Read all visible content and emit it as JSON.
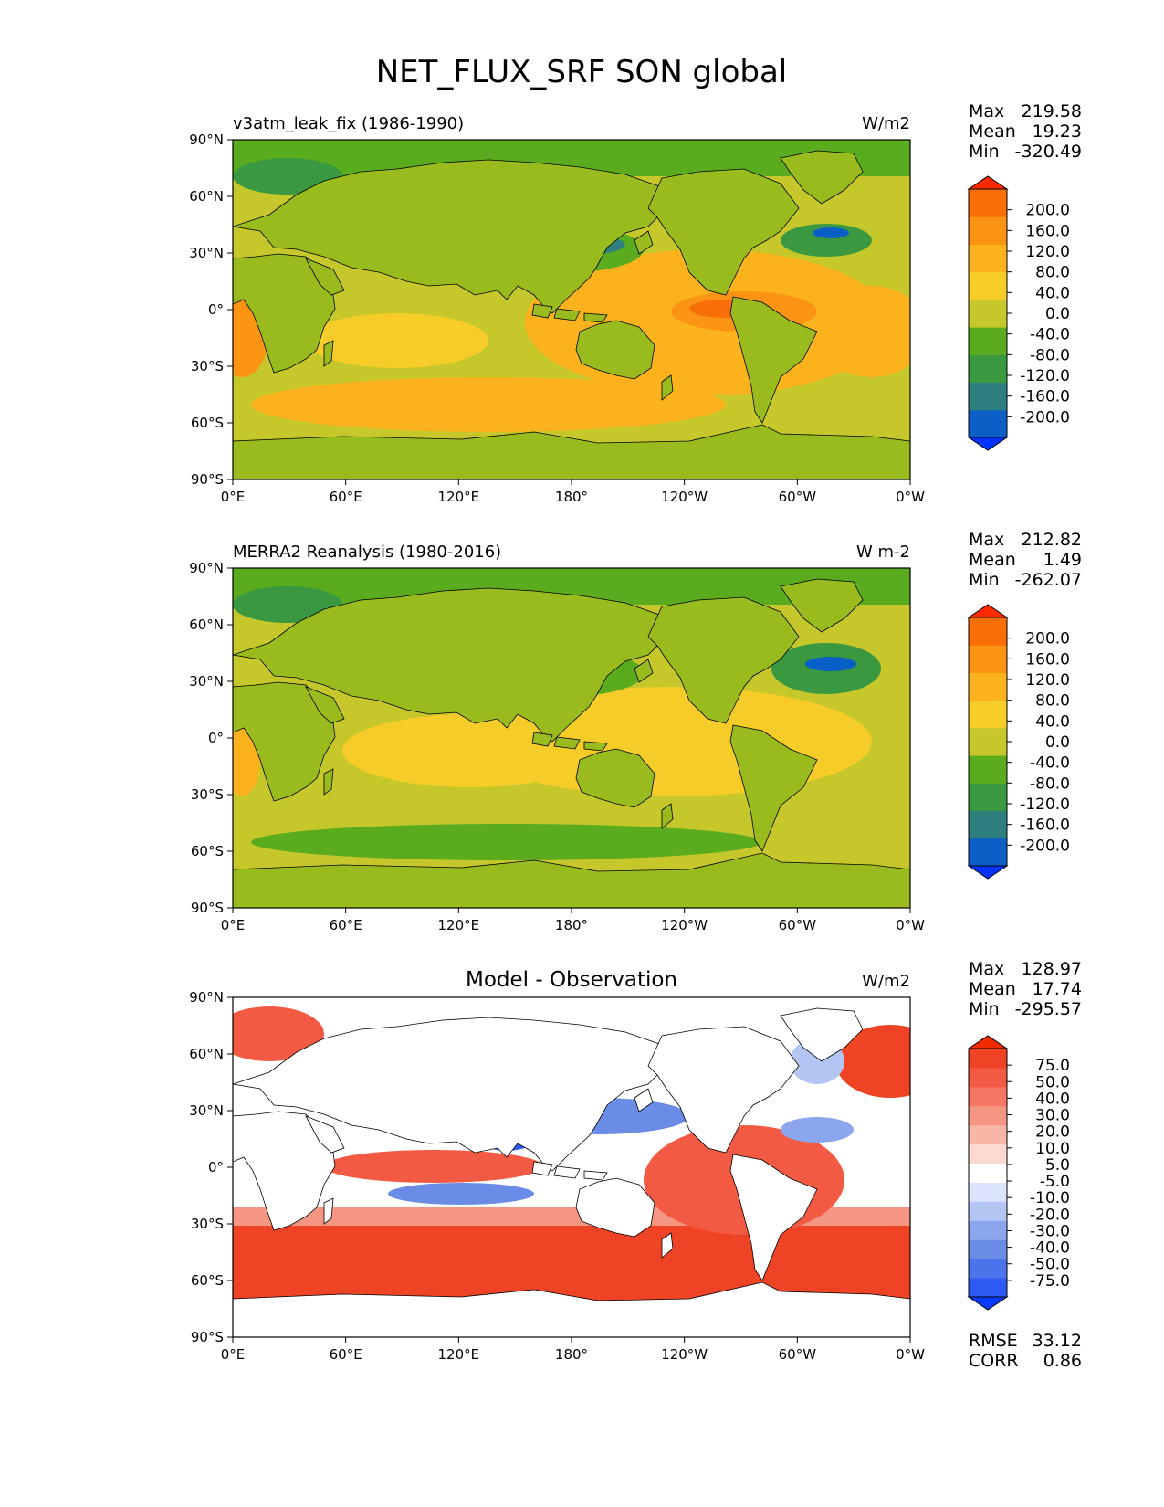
{
  "title": "NET_FLUX_SRF SON global",
  "lat_ticks": [
    "90°N",
    "60°N",
    "30°N",
    "0°",
    "30°S",
    "60°S",
    "90°S"
  ],
  "lon_ticks": [
    "0°E",
    "60°E",
    "120°E",
    "180°",
    "120°W",
    "60°W",
    "0°W"
  ],
  "colors": {
    "main_scale": [
      "#0033ff",
      "#0a5fc7",
      "#2f7f7f",
      "#3a9940",
      "#5aab1e",
      "#c5c72a",
      "#f5cc28",
      "#fbb21c",
      "#fa9412",
      "#f86e08",
      "#ff2a00"
    ],
    "diff_scale": [
      "#0b3bff",
      "#2d5bf2",
      "#4b73ea",
      "#6a8ce6",
      "#8ba6ec",
      "#b2c5f3",
      "#dbe4fa",
      "#ffffff",
      "#fcd9d1",
      "#f8b6a6",
      "#f59682",
      "#f37763",
      "#f25a44",
      "#ef4326",
      "#f22b00"
    ],
    "land_main": "#9abb1e",
    "land_diff": "#ffffff"
  },
  "panels": [
    {
      "label": "v3atm_leak_fix (1986-1990)",
      "center_title": "",
      "units": "W/m2",
      "stats": [
        {
          "name": "Max",
          "value": "219.58"
        },
        {
          "name": "Mean",
          "value": "19.23"
        },
        {
          "name": "Min",
          "value": "-320.49"
        }
      ],
      "colorbar_labels": [
        "200.0",
        "160.0",
        "120.0",
        "80.0",
        "40.0",
        "0.0",
        "-40.0",
        "-80.0",
        "-120.0",
        "-160.0",
        "-200.0"
      ],
      "metrics": []
    },
    {
      "label": "MERRA2 Reanalysis (1980-2016)",
      "center_title": "",
      "units": "W m-2",
      "stats": [
        {
          "name": "Max",
          "value": "212.82"
        },
        {
          "name": "Mean",
          "value": "1.49"
        },
        {
          "name": "Min",
          "value": "-262.07"
        }
      ],
      "colorbar_labels": [
        "200.0",
        "160.0",
        "120.0",
        "80.0",
        "40.0",
        "0.0",
        "-40.0",
        "-80.0",
        "-120.0",
        "-160.0",
        "-200.0"
      ],
      "metrics": []
    },
    {
      "label": "",
      "center_title": "Model - Observation",
      "units": "W/m2",
      "stats": [
        {
          "name": "Max",
          "value": "128.97"
        },
        {
          "name": "Mean",
          "value": "17.74"
        },
        {
          "name": "Min",
          "value": "-295.57"
        }
      ],
      "colorbar_labels": [
        "75.0",
        "50.0",
        "40.0",
        "30.0",
        "20.0",
        "10.0",
        "5.0",
        "-5.0",
        "-10.0",
        "-20.0",
        "-30.0",
        "-40.0",
        "-50.0",
        "-75.0"
      ],
      "metrics": [
        {
          "name": "RMSE",
          "value": "33.12"
        },
        {
          "name": "CORR",
          "value": "0.86"
        }
      ]
    }
  ]
}
